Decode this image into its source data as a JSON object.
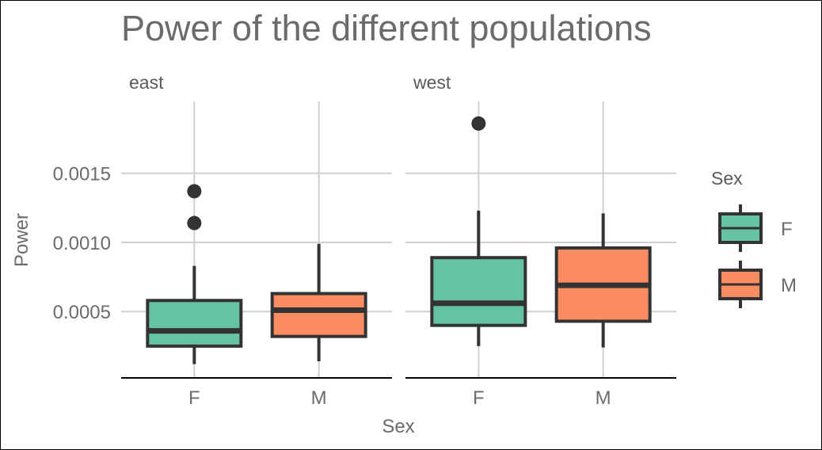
{
  "chart_data": {
    "type": "boxplot",
    "title": "Power of the different populations",
    "xlabel": "Sex",
    "ylabel": "Power",
    "ylim": [
      2e-05,
      0.00202
    ],
    "y_ticks": [
      0.0005,
      0.001,
      0.0015
    ],
    "y_tick_labels": [
      "0.0005",
      "0.0010",
      "0.0015"
    ],
    "categories": [
      "F",
      "M"
    ],
    "grid": true,
    "legend": {
      "title": "Sex",
      "placement": "right",
      "entries": [
        {
          "label": "F",
          "color": "#66c2a5"
        },
        {
          "label": "M",
          "color": "#fc8d62"
        }
      ]
    },
    "facets": [
      {
        "name": "east",
        "boxes": [
          {
            "category": "F",
            "color": "#66c2a5",
            "whisker_low": 0.00012,
            "q1": 0.00025,
            "median": 0.00036,
            "q3": 0.00058,
            "whisker_high": 0.00083,
            "outliers": [
              0.00114,
              0.00137
            ]
          },
          {
            "category": "M",
            "color": "#fc8d62",
            "whisker_low": 0.00014,
            "q1": 0.00032,
            "median": 0.00051,
            "q3": 0.00063,
            "whisker_high": 0.00099,
            "outliers": []
          }
        ]
      },
      {
        "name": "west",
        "boxes": [
          {
            "category": "F",
            "color": "#66c2a5",
            "whisker_low": 0.00025,
            "q1": 0.0004,
            "median": 0.00056,
            "q3": 0.00089,
            "whisker_high": 0.00123,
            "outliers": [
              0.00186
            ]
          },
          {
            "category": "M",
            "color": "#fc8d62",
            "whisker_low": 0.00024,
            "q1": 0.00043,
            "median": 0.00069,
            "q3": 0.00096,
            "whisker_high": 0.00121,
            "outliers": []
          }
        ]
      }
    ]
  }
}
